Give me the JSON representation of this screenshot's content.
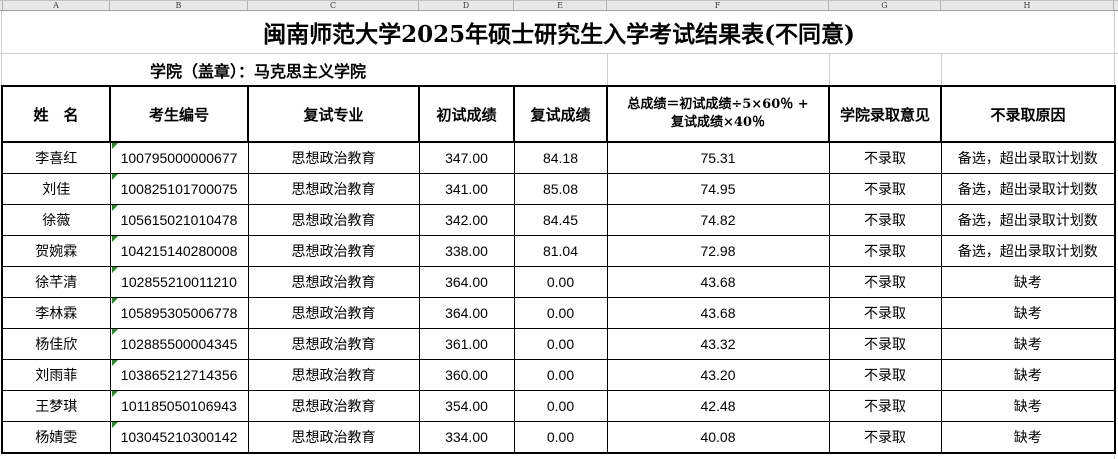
{
  "spreadsheet": {
    "column_letters": [
      "A",
      "B",
      "C",
      "D",
      "E",
      "F",
      "G",
      "H"
    ]
  },
  "title": "闽南师范大学2025年硕士研究生入学考试结果表(不同意)",
  "college_line": "学院（盖章）：马克思主义学院",
  "table": {
    "headers": {
      "name": "姓　名",
      "id": "考生编号",
      "major": "复试专业",
      "initial": "初试成绩",
      "retest": "复试成绩",
      "total_line1": "总成绩＝初试成绩÷5×60％ +",
      "total_line2": "复试成绩×40％",
      "opinion": "学院录取意见",
      "reason": "不录取原因"
    },
    "rows": [
      {
        "name": "李喜红",
        "id": "100795000000677",
        "major": "思想政治教育",
        "initial": "347.00",
        "retest": "84.18",
        "total": "75.31",
        "opinion": "不录取",
        "reason": "备选，超出录取计划数"
      },
      {
        "name": "刘佳",
        "id": "100825101700075",
        "major": "思想政治教育",
        "initial": "341.00",
        "retest": "85.08",
        "total": "74.95",
        "opinion": "不录取",
        "reason": "备选，超出录取计划数"
      },
      {
        "name": "徐薇",
        "id": "105615021010478",
        "major": "思想政治教育",
        "initial": "342.00",
        "retest": "84.45",
        "total": "74.82",
        "opinion": "不录取",
        "reason": "备选，超出录取计划数"
      },
      {
        "name": "贺婉霖",
        "id": "104215140280008",
        "major": "思想政治教育",
        "initial": "338.00",
        "retest": "81.04",
        "total": "72.98",
        "opinion": "不录取",
        "reason": "备选，超出录取计划数"
      },
      {
        "name": "徐芊清",
        "id": "102855210011210",
        "major": "思想政治教育",
        "initial": "364.00",
        "retest": "0.00",
        "total": "43.68",
        "opinion": "不录取",
        "reason": "缺考"
      },
      {
        "name": "李林霖",
        "id": "105895305006778",
        "major": "思想政治教育",
        "initial": "364.00",
        "retest": "0.00",
        "total": "43.68",
        "opinion": "不录取",
        "reason": "缺考"
      },
      {
        "name": "杨佳欣",
        "id": "102885500004345",
        "major": "思想政治教育",
        "initial": "361.00",
        "retest": "0.00",
        "total": "43.32",
        "opinion": "不录取",
        "reason": "缺考"
      },
      {
        "name": "刘雨菲",
        "id": "103865212714356",
        "major": "思想政治教育",
        "initial": "360.00",
        "retest": "0.00",
        "total": "43.20",
        "opinion": "不录取",
        "reason": "缺考"
      },
      {
        "name": "王梦琪",
        "id": "101185050106943",
        "major": "思想政治教育",
        "initial": "354.00",
        "retest": "0.00",
        "total": "42.48",
        "opinion": "不录取",
        "reason": "缺考"
      },
      {
        "name": "杨婧雯",
        "id": "103045210300142",
        "major": "思想政治教育",
        "initial": "334.00",
        "retest": "0.00",
        "total": "40.08",
        "opinion": "不录取",
        "reason": "缺考"
      }
    ]
  },
  "colors": {
    "table_border": "#000000",
    "grid_line": "#cfcfcf",
    "strip_background": "#e8e8e8",
    "indicator_green": "#1f8f1f"
  }
}
